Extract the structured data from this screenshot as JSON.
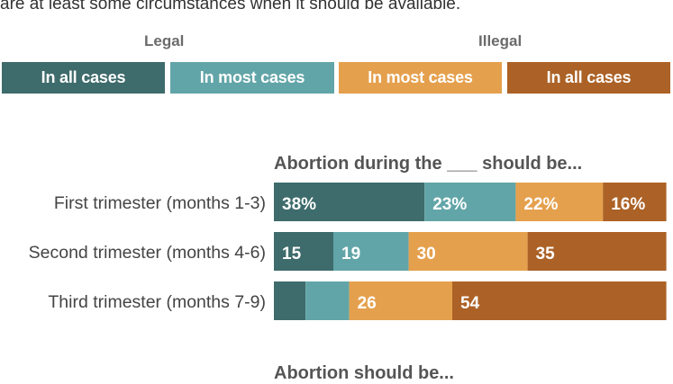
{
  "intro_text": "are at least some circumstances when it should be available.",
  "legend": {
    "groups": [
      {
        "label": "Legal"
      },
      {
        "label": "Illegal"
      }
    ],
    "items": [
      {
        "label": "In all cases",
        "color": "#3e6b6b"
      },
      {
        "label": "In most cases",
        "color": "#62a5a8"
      },
      {
        "label": "In most cases",
        "color": "#e5a04d"
      },
      {
        "label": "In all cases",
        "color": "#ac6226"
      }
    ]
  },
  "section_titles": {
    "trimester": "Abortion during the ___ should be...",
    "general": "Abortion should be..."
  },
  "chart_data": {
    "type": "bar",
    "orientation": "horizontal",
    "stacked": true,
    "categories": [
      "First trimester (months 1-3)",
      "Second trimester (months 4-6)",
      "Third trimester (months 7-9)"
    ],
    "series": [
      {
        "name": "Legal in all cases",
        "color": "#3e6b6b",
        "values": [
          38,
          15,
          8
        ]
      },
      {
        "name": "Legal in most cases",
        "color": "#62a5a8",
        "values": [
          23,
          19,
          11
        ]
      },
      {
        "name": "Illegal in most cases",
        "color": "#e5a04d",
        "values": [
          22,
          30,
          26
        ]
      },
      {
        "name": "Illegal in all cases",
        "color": "#ac6226",
        "values": [
          16,
          35,
          54
        ]
      }
    ],
    "data_labels": [
      [
        "38%",
        "23%",
        "22%",
        "16%"
      ],
      [
        "15",
        "19",
        "30",
        "35"
      ],
      [
        "",
        "",
        "26",
        "54"
      ]
    ]
  }
}
